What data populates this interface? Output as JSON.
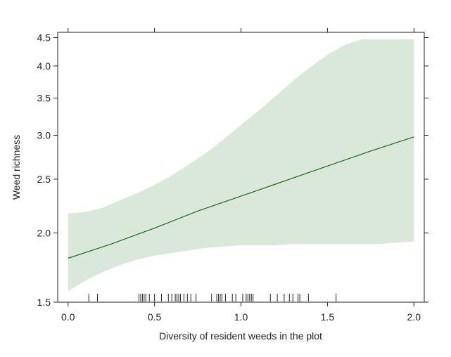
{
  "chart_data": {
    "type": "line",
    "xlabel": "Diversity of resident weeds in the plot",
    "ylabel": "Weed richness",
    "xlim": [
      -0.06,
      2.06
    ],
    "ylim": [
      1.5,
      4.6
    ],
    "y_scale": "log",
    "grid": false,
    "x_ticks": [
      {
        "value": 0.0,
        "label": "0.0"
      },
      {
        "value": 0.5,
        "label": "0.5"
      },
      {
        "value": 1.0,
        "label": "1.0"
      },
      {
        "value": 1.5,
        "label": "1.5"
      },
      {
        "value": 2.0,
        "label": "2.0"
      }
    ],
    "y_ticks": [
      {
        "value": 1.5,
        "label": "1.5"
      },
      {
        "value": 2.0,
        "label": "2.0"
      },
      {
        "value": 2.5,
        "label": "2.5"
      },
      {
        "value": 3.0,
        "label": "3.0"
      },
      {
        "value": 3.5,
        "label": "3.5"
      },
      {
        "value": 4.0,
        "label": "4.0"
      },
      {
        "value": 4.5,
        "label": "4.5"
      }
    ],
    "series": [
      {
        "x": [
          0.0,
          0.25,
          0.5,
          0.75,
          1.0,
          1.25,
          1.5,
          1.75,
          2.0
        ],
        "values": [
          1.8,
          1.91,
          2.04,
          2.19,
          2.33,
          2.48,
          2.64,
          2.81,
          2.98
        ]
      }
    ],
    "confidence_band": {
      "x": [
        0.0,
        0.1,
        0.2,
        0.3,
        0.4,
        0.5,
        0.6,
        0.7,
        0.8,
        0.9,
        1.0,
        1.1,
        1.2,
        1.3,
        1.4,
        1.5,
        1.6,
        1.7,
        1.8,
        1.9,
        2.0
      ],
      "lower": [
        1.57,
        1.64,
        1.7,
        1.75,
        1.79,
        1.82,
        1.84,
        1.86,
        1.88,
        1.89,
        1.9,
        1.9,
        1.9,
        1.91,
        1.91,
        1.91,
        1.91,
        1.91,
        1.91,
        1.92,
        1.93
      ],
      "upper": [
        2.17,
        2.18,
        2.22,
        2.29,
        2.36,
        2.44,
        2.54,
        2.66,
        2.79,
        2.95,
        3.13,
        3.32,
        3.53,
        3.76,
        3.98,
        4.19,
        4.37,
        4.54,
        4.69,
        4.81,
        4.56
      ]
    },
    "rug_x": [
      0.12,
      0.17,
      0.41,
      0.42,
      0.43,
      0.44,
      0.45,
      0.47,
      0.5,
      0.54,
      0.58,
      0.6,
      0.62,
      0.63,
      0.64,
      0.65,
      0.67,
      0.69,
      0.71,
      0.74,
      0.83,
      0.86,
      0.87,
      0.88,
      0.89,
      0.91,
      0.95,
      0.97,
      1.01,
      1.03,
      1.04,
      1.05,
      1.06,
      1.07,
      1.17,
      1.21,
      1.25,
      1.28,
      1.3,
      1.33,
      1.34,
      1.39,
      1.55
    ],
    "colors": {
      "line": "#1a6b1a",
      "band": "#d9e8d9",
      "axis": "#222222"
    }
  }
}
